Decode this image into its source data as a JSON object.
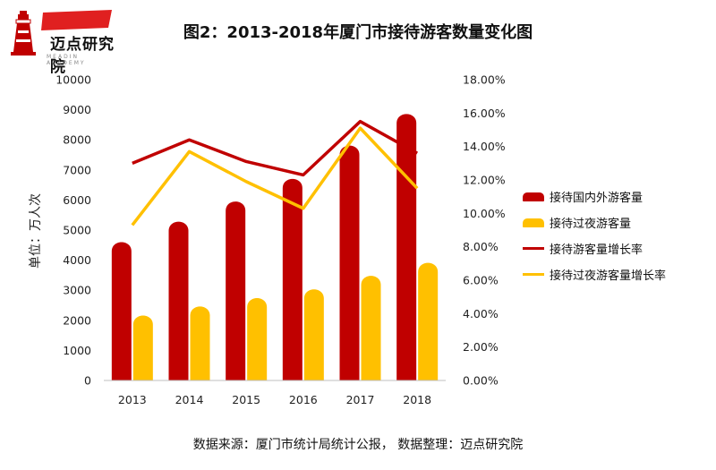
{
  "logo": {
    "name": "迈点研究院",
    "sub": "MEADIN ACADEMY"
  },
  "chart_data": {
    "type": "bar",
    "title": "图2：2013-2018年厦门市接待游客数量变化图",
    "categories": [
      "2013",
      "2014",
      "2015",
      "2016",
      "2017",
      "2018"
    ],
    "series": [
      {
        "name": "接待国内外游客量",
        "type": "bar",
        "axis": "left",
        "color": "#C00000",
        "values": [
          4620,
          5300,
          5970,
          6720,
          7830,
          8880
        ]
      },
      {
        "name": "接待过夜游客量",
        "type": "bar",
        "axis": "left",
        "color": "#FFC000",
        "values": [
          2180,
          2480,
          2760,
          3050,
          3500,
          3930
        ]
      },
      {
        "name": "接待游客量增长率",
        "type": "line",
        "axis": "right",
        "color": "#C00000",
        "values": [
          13.0,
          14.4,
          13.1,
          12.3,
          15.5,
          13.6
        ]
      },
      {
        "name": "接待过夜游客量增长率",
        "type": "line",
        "axis": "right",
        "color": "#FFC000",
        "values": [
          9.3,
          13.7,
          11.9,
          10.3,
          15.1,
          11.5
        ]
      }
    ],
    "ylabel": "单位：万人次",
    "ylim": [
      0,
      10000
    ],
    "yticks": [
      "0",
      "1000",
      "2000",
      "3000",
      "4000",
      "5000",
      "6000",
      "7000",
      "8000",
      "9000",
      "10000"
    ],
    "y2lim": [
      0,
      18
    ],
    "y2ticks": [
      "0.00%",
      "2.00%",
      "4.00%",
      "6.00%",
      "8.00%",
      "10.00%",
      "12.00%",
      "14.00%",
      "16.00%",
      "18.00%"
    ],
    "grid": false,
    "legend_position": "right"
  },
  "source_note": "数据来源：厦门市统计局统计公报， 数据整理：迈点研究院"
}
